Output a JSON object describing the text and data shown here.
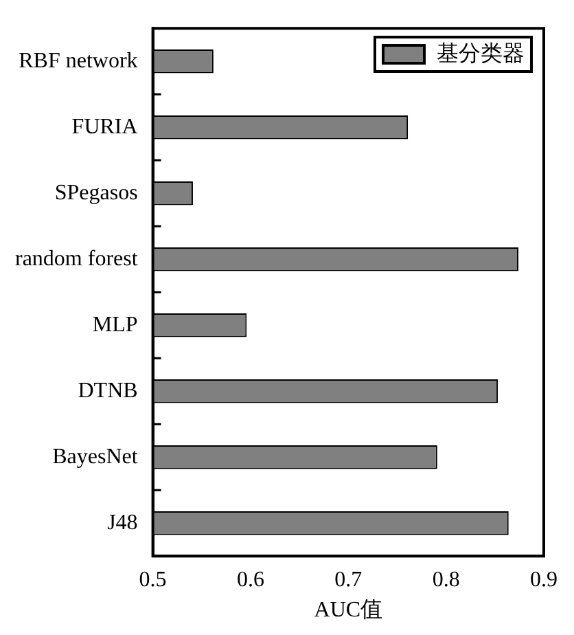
{
  "chart_data": {
    "type": "bar",
    "orientation": "horizontal",
    "xlabel": "AUC值",
    "categories": [
      "RBF network",
      "FURIA",
      "SPegasos",
      "random forest",
      "MLP",
      "DTNB",
      "BayesNet",
      "J48"
    ],
    "series": [
      {
        "name": "基分类器",
        "color": "#808080",
        "values": [
          0.562,
          0.761,
          0.541,
          0.874,
          0.596,
          0.853,
          0.791,
          0.864
        ]
      }
    ],
    "xlim": [
      0.5,
      0.9
    ],
    "xticks": [
      0.5,
      0.6,
      0.7,
      0.8,
      0.9
    ],
    "grid": false,
    "legend": "top right"
  }
}
